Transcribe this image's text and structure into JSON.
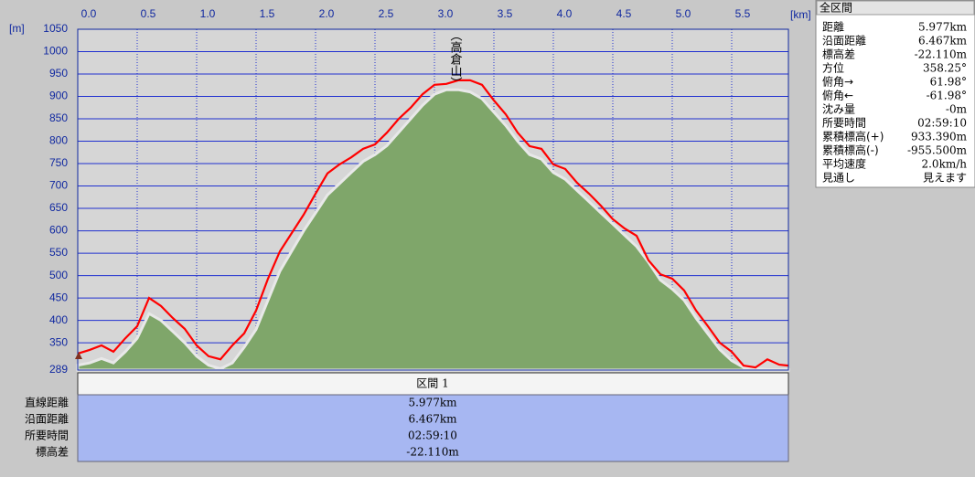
{
  "chart_data": {
    "type": "line",
    "annotation": "（高倉山）",
    "xlabel": "[km]",
    "ylabel": "[m]",
    "x": [
      0,
      0.1,
      0.2,
      0.3,
      0.4,
      0.5,
      0.6,
      0.7,
      0.8,
      0.9,
      1.0,
      1.1,
      1.2,
      1.3,
      1.4,
      1.5,
      1.6,
      1.7,
      1.8,
      1.9,
      2.0,
      2.1,
      2.2,
      2.3,
      2.4,
      2.5,
      2.6,
      2.7,
      2.8,
      2.9,
      3.0,
      3.1,
      3.2,
      3.3,
      3.4,
      3.5,
      3.6,
      3.7,
      3.8,
      3.9,
      4.0,
      4.1,
      4.2,
      4.3,
      4.4,
      4.5,
      4.6,
      4.7,
      4.8,
      4.9,
      5.0,
      5.1,
      5.2,
      5.3,
      5.4,
      5.5,
      5.6,
      5.7,
      5.8,
      5.9,
      5.977
    ],
    "series": [
      {
        "color": "#7fa66a",
        "values": [
          300,
          305,
          315,
          305,
          330,
          360,
          415,
          400,
          375,
          350,
          320,
          300,
          292,
          305,
          340,
          380,
          445,
          510,
          555,
          600,
          640,
          680,
          705,
          730,
          755,
          770,
          790,
          820,
          850,
          880,
          905,
          915,
          915,
          910,
          895,
          865,
          835,
          800,
          770,
          760,
          730,
          715,
          690,
          665,
          640,
          615,
          590,
          565,
          530,
          490,
          470,
          445,
          405,
          370,
          335,
          310,
          295,
          292,
          290,
          290,
          290
        ]
      },
      {
        "color": "#ff0000",
        "values": [
          326,
          334,
          344,
          330,
          360,
          387,
          450,
          432,
          405,
          381,
          344,
          320,
          313,
          344,
          371,
          422,
          493,
          554,
          595,
          636,
          683,
          728,
          748,
          764,
          783,
          793,
          819,
          850,
          875,
          905,
          926,
          928,
          936,
          936,
          926,
          891,
          860,
          819,
          789,
          783,
          748,
          738,
          707,
          683,
          656,
          626,
          605,
          589,
          534,
          503,
          493,
          467,
          422,
          387,
          350,
          330,
          299,
          295,
          313,
          301,
          299
        ]
      }
    ],
    "xlim": [
      0,
      5.977
    ],
    "ylim": [
      289,
      1050
    ],
    "xticks": [
      {
        "value": 0,
        "label": "0.0"
      },
      {
        "value": 0.5,
        "label": "0.5"
      },
      {
        "value": 1,
        "label": "1.0"
      },
      {
        "value": 1.5,
        "label": "1.5"
      },
      {
        "value": 2,
        "label": "2.0"
      },
      {
        "value": 2.5,
        "label": "2.5"
      },
      {
        "value": 3,
        "label": "3.0"
      },
      {
        "value": 3.5,
        "label": "3.5"
      },
      {
        "value": 4,
        "label": "4.0"
      },
      {
        "value": 4.5,
        "label": "4.5"
      },
      {
        "value": 5,
        "label": "5.0"
      },
      {
        "value": 5.5,
        "label": "5.5"
      }
    ],
    "yticks": [
      289,
      350,
      400,
      450,
      500,
      550,
      600,
      650,
      700,
      750,
      800,
      850,
      900,
      950,
      1000,
      1050
    ],
    "grid": true
  },
  "section": {
    "header": "区間 1",
    "rows": [
      [
        "直線距離",
        "5.977km"
      ],
      [
        "沿面距離",
        "6.467km"
      ],
      [
        "所要時間",
        "02:59:10"
      ],
      [
        "標高差",
        "-22.110m"
      ]
    ]
  },
  "summary": {
    "title": "全区間",
    "rows": [
      [
        "距離",
        "5.977km"
      ],
      [
        "沿面距離",
        "6.467km"
      ],
      [
        "標高差",
        "-22.110m"
      ],
      [
        "方位",
        "358.25°"
      ],
      [
        "俯角→",
        "61.98°"
      ],
      [
        "俯角←",
        "-61.98°"
      ],
      [
        "沈み量",
        "-0m"
      ],
      [
        "所要時間",
        "02:59:10"
      ],
      [
        "累積標高(+)",
        "933.390m"
      ],
      [
        "累積標高(-)",
        "-955.500m"
      ],
      [
        "平均速度",
        "2.0km/h"
      ],
      [
        "見通し",
        "見えます"
      ]
    ]
  }
}
